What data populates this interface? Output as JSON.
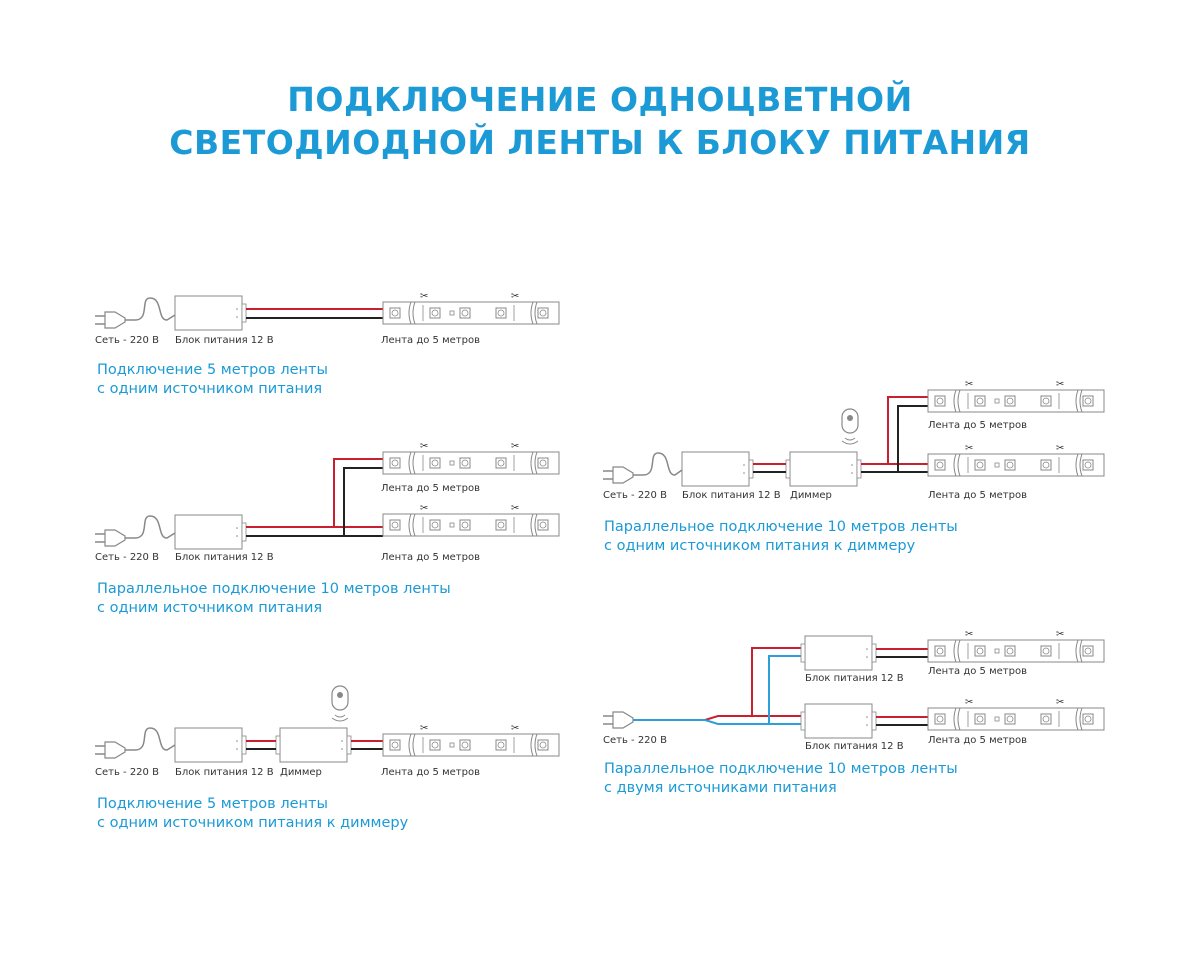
{
  "title": {
    "line1": "ПОДКЛЮЧЕНИЕ ОДНОЦВЕТНОЙ",
    "line2": "СВЕТОДИОДНОЙ ЛЕНТЫ К БЛОКУ ПИТАНИЯ"
  },
  "labels": {
    "mains": "Сеть - 220 В",
    "psu": "Блок питания 12 В",
    "dimmer": "Диммер",
    "strip": "Лента до 5 метров"
  },
  "diagrams": [
    {
      "caption1": "Подключение 5 метров ленты",
      "caption2": "с одним источником питания"
    },
    {
      "caption1": "Параллельное подключение 10 метров ленты",
      "caption2": "с одним источником питания"
    },
    {
      "caption1": "Подключение 5 метров ленты",
      "caption2": "с одним источником питания к диммеру"
    },
    {
      "caption1": "Параллельное подключение 10 метров ленты",
      "caption2": "с одним источником питания к диммеру"
    },
    {
      "caption1": "Параллельное подключение 10 метров ленты",
      "caption2": "с двумя источниками питания"
    }
  ],
  "colors": {
    "accent": "#1b9ad6",
    "positive_wire": "#c8202f",
    "negative_wire": "#222222",
    "neutral_wire": "#2a9fd8",
    "outline": "#888888"
  }
}
